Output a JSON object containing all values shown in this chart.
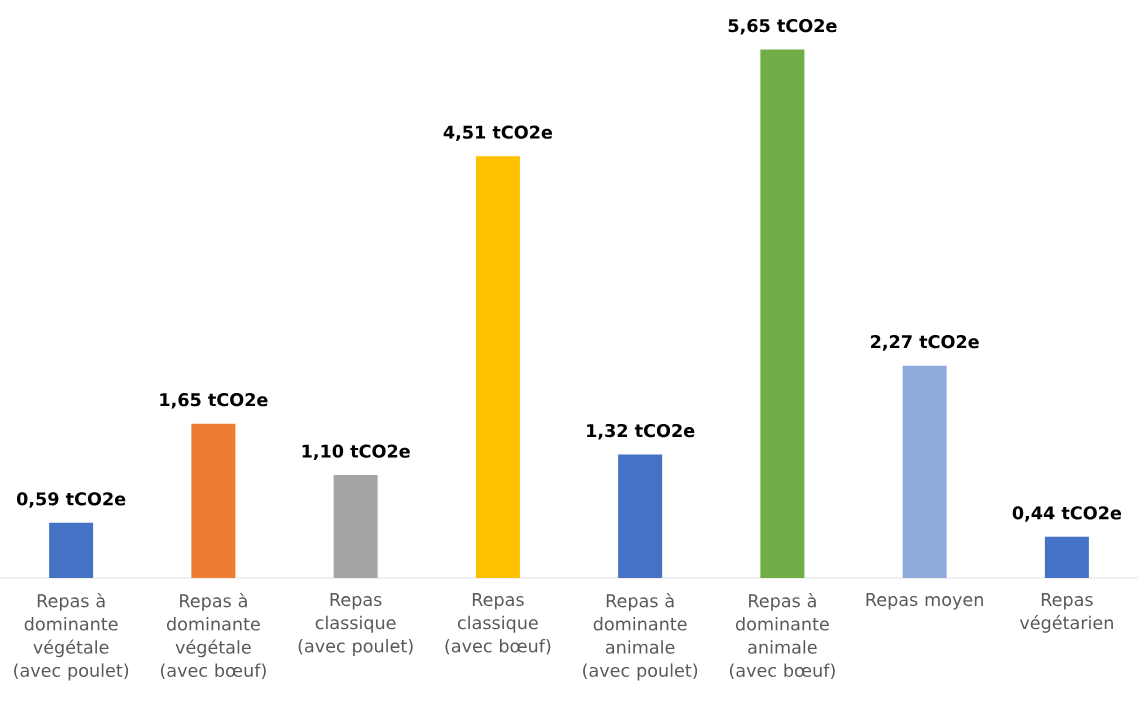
{
  "chart_data": {
    "type": "bar",
    "categories": [
      "Repas à dominante végétale (avec poulet)",
      "Repas à dominante végétale (avec bœuf)",
      "Repas classique (avec poulet)",
      "Repas classique (avec bœuf)",
      "Repas à dominante animale (avec poulet)",
      "Repas à dominante animale (avec bœuf)",
      "Repas moyen",
      "Repas végétarien"
    ],
    "values": [
      0.59,
      1.65,
      1.1,
      4.51,
      1.32,
      5.65,
      2.27,
      0.44
    ],
    "colors": [
      "#4472c4",
      "#ed7d31",
      "#a5a5a5",
      "#ffc000",
      "#4472c4",
      "#70ad47",
      "#8faadc",
      "#4472c4"
    ],
    "value_labels": [
      "0,59 tCO2e",
      "1,65 tCO2e",
      "1,10 tCO2e",
      "4,51 tCO2e",
      "1,32 tCO2e",
      "5,65 tCO2e",
      "2,27 tCO2e",
      "0,44 tCO2e"
    ]
  }
}
